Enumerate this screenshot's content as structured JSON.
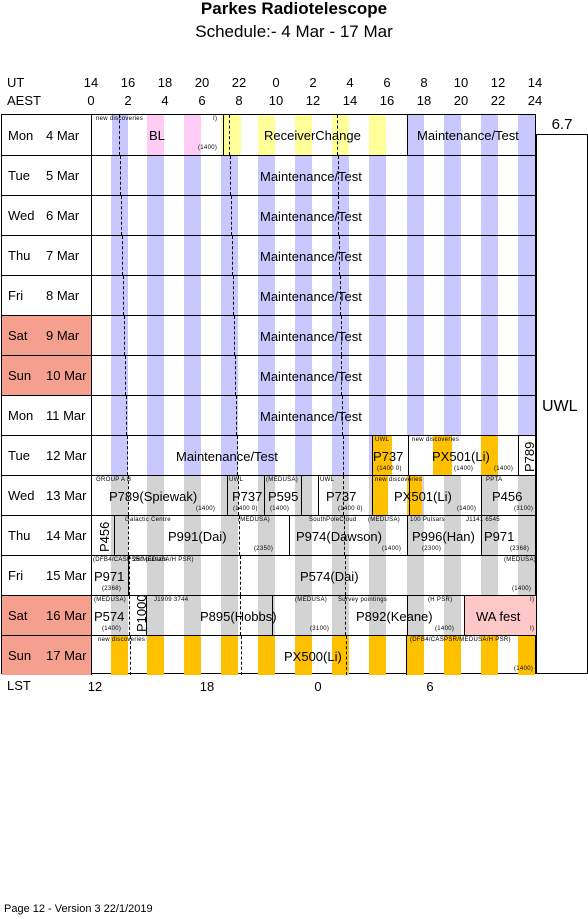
{
  "header": {
    "title": "Parkes Radiotelescope",
    "subtitle": "Schedule:- 4  Mar - 17 Mar",
    "ut_label": "UT",
    "aest_label": "AEST",
    "lst_label": "LST",
    "ut_ticks": [
      "14",
      "16",
      "18",
      "20",
      "22",
      "0",
      "2",
      "4",
      "6",
      "8",
      "10",
      "12",
      "14"
    ],
    "aest_ticks": [
      "0",
      "2",
      "4",
      "6",
      "8",
      "10",
      "12",
      "14",
      "16",
      "18",
      "20",
      "22",
      "24"
    ],
    "lst_ticks": [
      "12",
      "18",
      "0",
      "6"
    ]
  },
  "side": {
    "top_value": "6.7",
    "receiver": "UWL"
  },
  "days": [
    {
      "dow": "Mon",
      "date": "4  Mar",
      "weekend": false
    },
    {
      "dow": "Tue",
      "date": "5  Mar",
      "weekend": false
    },
    {
      "dow": "Wed",
      "date": "6  Mar",
      "weekend": false
    },
    {
      "dow": "Thu",
      "date": "7  Mar",
      "weekend": false
    },
    {
      "dow": "Fri",
      "date": "8  Mar",
      "weekend": false
    },
    {
      "dow": "Sat",
      "date": "9  Mar",
      "weekend": true
    },
    {
      "dow": "Sun",
      "date": "10 Mar",
      "weekend": true
    },
    {
      "dow": "Mon",
      "date": "11 Mar",
      "weekend": false
    },
    {
      "dow": "Tue",
      "date": "12 Mar",
      "weekend": false
    },
    {
      "dow": "Wed",
      "date": "13 Mar",
      "weekend": false
    },
    {
      "dow": "Thu",
      "date": "14 Mar",
      "weekend": false
    },
    {
      "dow": "Fri",
      "date": "15 Mar",
      "weekend": false
    },
    {
      "dow": "Sat",
      "date": "16 Mar",
      "weekend": true
    },
    {
      "dow": "Sun",
      "date": "17 Mar",
      "weekend": true
    }
  ],
  "labels": {
    "mon4_newdisc": "new discoveries",
    "mon4_bl": "BL",
    "mon4_1400": "(1400)",
    "mon4_i": "I)",
    "mon4_receiver_change": "ReceiverChange",
    "mon4_maint": "Maintenance/Test",
    "maint": "Maintenance/Test",
    "tue12_maint": "Maintenance/Test",
    "tue12_uwl": "UWL",
    "tue12_p737": "P737",
    "tue12_p737_note": "(1400 0)",
    "tue12_newdisc": "new discoveries",
    "tue12_px501": "PX501(Li)",
    "tue12_px501_note": "(1400)",
    "tue12_px501_note2": "(1400)",
    "tue12_p789": "P789",
    "wed13_group": "GROUP A B",
    "wed13_p789": "P789(Spiewak)",
    "wed13_p789_note": "(1400)",
    "wed13_uwl1": "UWL",
    "wed13_p737a": "P737",
    "wed13_p737a_note": "(1400 0)",
    "wed13_medusa": "(MEDUSA)",
    "wed13_p595": "P595",
    "wed13_p595_note": "(1400)",
    "wed13_uwl2": "UWL",
    "wed13_p737b": "P737",
    "wed13_p737b_note": "(1400 0)",
    "wed13_newdisc": "new discoveries",
    "wed13_px501": "PX501(Li)",
    "wed13_px501_note": "(1400)",
    "wed13_ppta": "PPTA",
    "wed13_p456": "P456",
    "wed13_p456_note": "(3100)",
    "thu14_p456": "P456",
    "thu14_galactic": "Galactic Centre",
    "thu14_p991": "P991(Dai)",
    "thu14_p991_note": "(2350)",
    "thu14_medusa1": "(MEDUSA)",
    "thu14_southpole": "SouthPoleCloud",
    "thu14_medusa2": "(MEDUSA)",
    "thu14_p974": "P974(Dawson)",
    "thu14_p974_note": "(1400)",
    "thu14_100pulsars": "100 Pulsars",
    "thu14_p996": "P996(Han)",
    "thu14_p996_note": "(2300)",
    "thu14_j1141": "J1141 6545",
    "thu14_p971": "P971",
    "thu14_p971_note": "(2368)",
    "fri15_backend": "(DFB4/CASPSR/MEDUSA/H PSR)",
    "fri15_p971": "P971",
    "fri15_p971_note": "(2368)",
    "fri15_250": "250 pulsars",
    "fri15_p574": "P574(Dai)",
    "fri15_medusa": "(MEDUSA)",
    "fri15_p574_note": "(1400)",
    "sat16_medusa1": "(MEDUSA)",
    "sat16_p574": "P574",
    "sat16_p574_note": "(1400)",
    "sat16_p1000": "P1000",
    "sat16_j1909": "J1909 3744",
    "sat16_p895": "P895(Hobbs)",
    "sat16_medusa2": "(MEDUSA)",
    "sat16_p895_note": "(3100)",
    "sat16_survey": "Survey pointings",
    "sat16_hpsr": "(H PSR)",
    "sat16_p892": "P892(Keane)",
    "sat16_p892_note": "(1400)",
    "sat16_wafest": "WA fest",
    "sat16_i": "I)",
    "sat16_i2": "I)",
    "sun17_newdisc": "new discoveries",
    "sun17_px500": "PX500(Li)",
    "sun17_backend": "(DFB4/CASPSR/MEDUSA/H PSR)",
    "sun17_note": "(1400)"
  },
  "colors": {
    "lavender": "#c8c8ff",
    "pink": "#ffccf5",
    "yellow": "#ffff99",
    "grey": "#d3d3d3",
    "orange": "#ffc000",
    "weekend": "#f59f8e",
    "salmon": "#ffc8c8"
  },
  "footer": "Page 12 - Version 3  22/1/2019"
}
